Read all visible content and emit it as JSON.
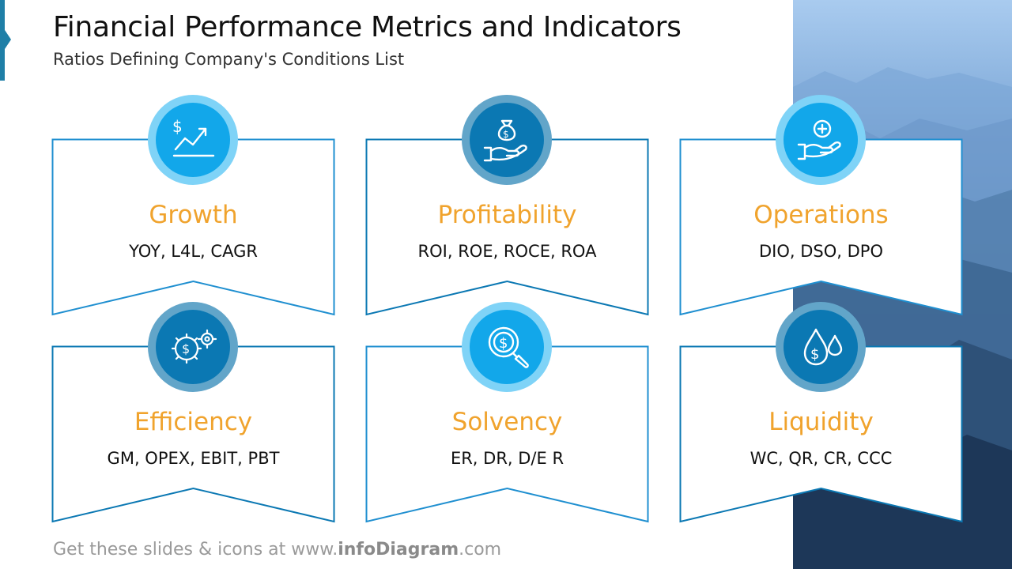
{
  "title": "Financial Performance Metrics and Indicators",
  "subtitle": "Ratios Defining Company's Conditions List",
  "cards": [
    {
      "label": "Growth",
      "metrics": "YOY, L4L, CAGR",
      "icon": "growth-chart-icon"
    },
    {
      "label": "Profitability",
      "metrics": "ROI, ROE, ROCE, ROA",
      "icon": "money-bag-hand-icon"
    },
    {
      "label": "Operations",
      "metrics": "DIO, DSO, DPO",
      "icon": "hand-plus-icon"
    },
    {
      "label": "Efficiency",
      "metrics": "GM, OPEX, EBIT, PBT",
      "icon": "gears-dollar-icon"
    },
    {
      "label": "Solvency",
      "metrics": "ER, DR, D/E R",
      "icon": "magnifier-dollar-icon"
    },
    {
      "label": "Liquidity",
      "metrics": "WC, QR, CR, CCC",
      "icon": "drops-dollar-icon"
    }
  ],
  "footer": {
    "prefix": "Get these slides & icons at www.",
    "brand": "infoDiagram",
    "suffix": ".com"
  },
  "colors": {
    "accent": "#f0a32d",
    "light_blue": "#12a7ea",
    "dark_blue": "#0b78b3",
    "outline": "#1f8fd0"
  }
}
